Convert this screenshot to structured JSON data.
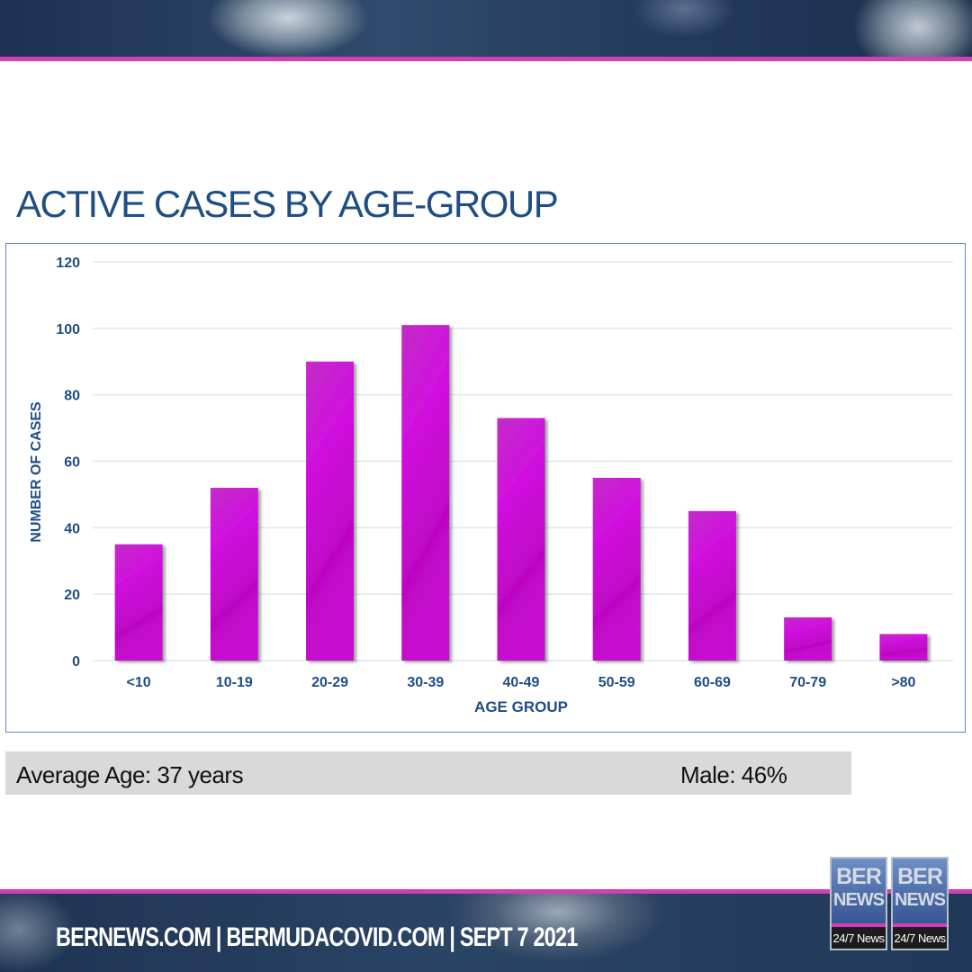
{
  "title": "ACTIVE CASES BY AGE-GROUP",
  "chart_data": {
    "type": "bar",
    "title": "ACTIVE CASES BY AGE-GROUP",
    "xlabel": "AGE GROUP",
    "ylabel": "NUMBER OF CASES",
    "categories": [
      "<10",
      "10-19",
      "20-29",
      "30-39",
      "40-49",
      "50-59",
      "60-69",
      "70-79",
      ">80"
    ],
    "values": [
      35,
      52,
      90,
      101,
      73,
      55,
      45,
      13,
      8
    ],
    "ylim": [
      0,
      120
    ],
    "yticks": [
      0,
      20,
      40,
      60,
      80,
      100,
      120
    ],
    "grid": true,
    "legend": "none",
    "bar_color": "#cc11d6",
    "axis_text_color": "#1f4e85",
    "grid_color": "#dbe8f5"
  },
  "stats": {
    "average_age": "Average Age: 37 years",
    "male": "Male: 46%"
  },
  "footer": {
    "text": "BERNEWS.COM | BERMUDACOVID.COM | SEPT 7 2021"
  },
  "logo": {
    "line1": "BER",
    "line2": "NEWS",
    "tag": "24/7 News"
  },
  "colors": {
    "accent_pink": "#d23fb4",
    "banner_navy": "#223a5c",
    "title_blue": "#1f4e85"
  }
}
